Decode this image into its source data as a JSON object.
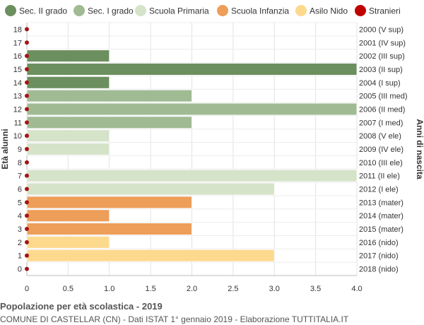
{
  "chart_data": {
    "type": "bar",
    "orientation": "horizontal",
    "xlim": [
      0,
      4
    ],
    "x_ticks": [
      "0",
      "0.5",
      "1.0",
      "1.5",
      "2.0",
      "2.5",
      "3.0",
      "3.5",
      "4.0"
    ],
    "ylabel_left": "Età alunni",
    "ylabel_right": "Anni di nascita",
    "grid": true,
    "legend_position": "top",
    "legend": [
      {
        "label": "Sec. II grado",
        "color": "#6b8f5e"
      },
      {
        "label": "Sec. I grado",
        "color": "#a0bb94"
      },
      {
        "label": "Scuola Primaria",
        "color": "#d5e3c9"
      },
      {
        "label": "Scuola Infanzia",
        "color": "#ed9e59"
      },
      {
        "label": "Asilo Nido",
        "color": "#fdd98e"
      },
      {
        "label": "Stranieri",
        "color": "#c00000"
      }
    ],
    "rows": [
      {
        "age": "18",
        "birth": "2000 (V sup)",
        "value": 0,
        "group": 0
      },
      {
        "age": "17",
        "birth": "2001 (IV sup)",
        "value": 0,
        "group": 0
      },
      {
        "age": "16",
        "birth": "2002 (III sup)",
        "value": 1,
        "group": 0
      },
      {
        "age": "15",
        "birth": "2003 (II sup)",
        "value": 4,
        "group": 0
      },
      {
        "age": "14",
        "birth": "2004 (I sup)",
        "value": 1,
        "group": 0
      },
      {
        "age": "13",
        "birth": "2005 (III med)",
        "value": 2,
        "group": 1
      },
      {
        "age": "12",
        "birth": "2006 (II med)",
        "value": 4,
        "group": 1
      },
      {
        "age": "11",
        "birth": "2007 (I med)",
        "value": 2,
        "group": 1
      },
      {
        "age": "10",
        "birth": "2008 (V ele)",
        "value": 1,
        "group": 2
      },
      {
        "age": "9",
        "birth": "2009 (IV ele)",
        "value": 1,
        "group": 2
      },
      {
        "age": "8",
        "birth": "2010 (III ele)",
        "value": 0,
        "group": 2
      },
      {
        "age": "7",
        "birth": "2011 (II ele)",
        "value": 4,
        "group": 2
      },
      {
        "age": "6",
        "birth": "2012 (I ele)",
        "value": 3,
        "group": 2
      },
      {
        "age": "5",
        "birth": "2013 (mater)",
        "value": 2,
        "group": 3
      },
      {
        "age": "4",
        "birth": "2014 (mater)",
        "value": 1,
        "group": 3
      },
      {
        "age": "3",
        "birth": "2015 (mater)",
        "value": 2,
        "group": 3
      },
      {
        "age": "2",
        "birth": "2016 (nido)",
        "value": 1,
        "group": 4
      },
      {
        "age": "1",
        "birth": "2017 (nido)",
        "value": 3,
        "group": 4
      },
      {
        "age": "0",
        "birth": "2018 (nido)",
        "value": 0,
        "group": 4
      }
    ],
    "stranieri": [
      0,
      0,
      0,
      0,
      0,
      0,
      0,
      0,
      0,
      0,
      0,
      0,
      0,
      0,
      0,
      0,
      0,
      0,
      0
    ]
  },
  "footer": {
    "title": "Popolazione per età scolastica - 2019",
    "subtitle": "COMUNE DI CASTELLAR (CN) - Dati ISTAT 1° gennaio 2019 - Elaborazione TUTTITALIA.IT"
  }
}
